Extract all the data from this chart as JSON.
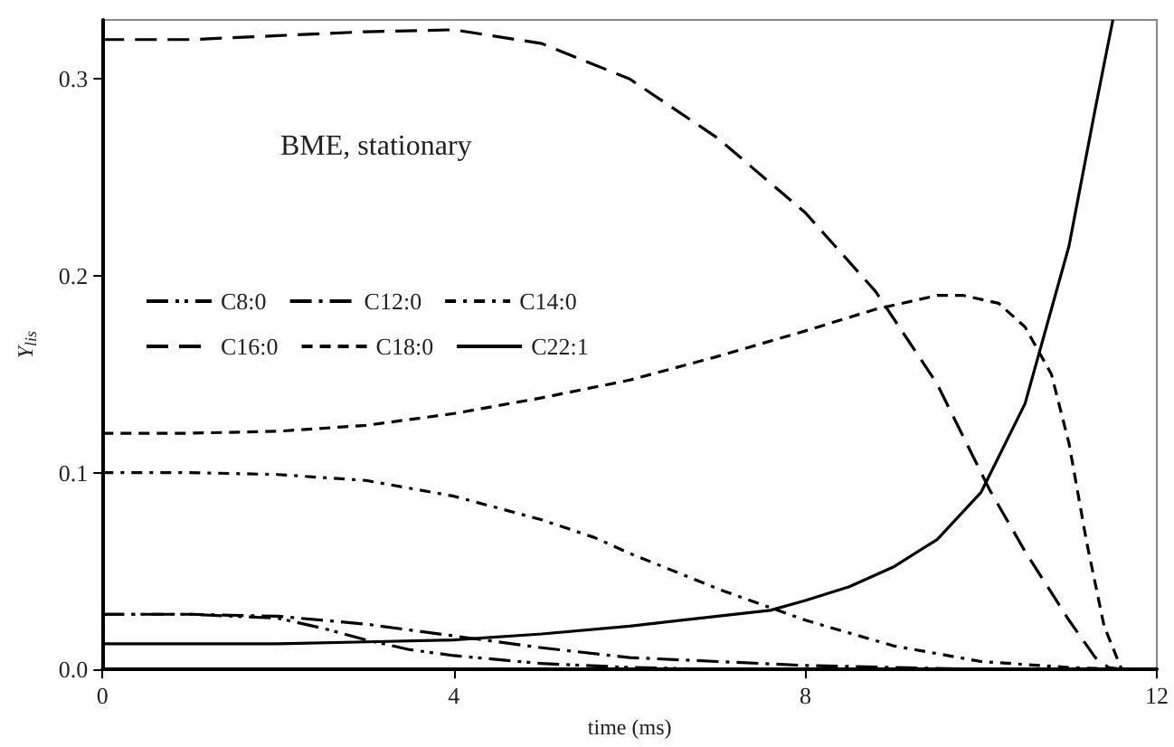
{
  "chart_data": {
    "type": "line",
    "xlabel": "time (ms)",
    "ylabel": "Y$_{lis}$",
    "annotations": [
      "BME, stationary"
    ],
    "xlim": [
      0,
      12
    ],
    "xticks": [
      0,
      4,
      8,
      12
    ],
    "ylim": [
      0,
      0.33
    ],
    "yticks": [
      {
        "value": 0,
        "label": "0.0"
      },
      0.1,
      0.2,
      0.3
    ],
    "grid": false,
    "legend": "left",
    "marker": "none",
    "series": [
      {
        "name": "C8:0",
        "color": "#000000",
        "line_style": "dashdotdot",
        "x": [
          0,
          1,
          2,
          2.5,
          3,
          3.5,
          4,
          5,
          6,
          7
        ],
        "values": [
          0.028,
          0.028,
          0.026,
          0.021,
          0.015,
          0.01,
          0.007,
          0.003,
          0.001,
          0
        ]
      },
      {
        "name": "C12:0",
        "color": "#000000",
        "line_style": "dashdot",
        "x": [
          0,
          1,
          2,
          3,
          4,
          5,
          6,
          7,
          8,
          9,
          10
        ],
        "values": [
          0.028,
          0.028,
          0.027,
          0.023,
          0.017,
          0.011,
          0.006,
          0.004,
          0.002,
          0.001,
          0
        ]
      },
      {
        "name": "C14:0",
        "color": "#000000",
        "line_style": "dashdotshort",
        "x": [
          0,
          1,
          2,
          3,
          4,
          5,
          5.6,
          6,
          7,
          8,
          9,
          10,
          11,
          11.6
        ],
        "values": [
          0.1,
          0.1,
          0.099,
          0.096,
          0.088,
          0.076,
          0.067,
          0.059,
          0.041,
          0.025,
          0.012,
          0.004,
          0.001,
          0
        ]
      },
      {
        "name": "C16:0",
        "color": "#000000",
        "line_style": "longdash",
        "x": [
          0,
          1,
          2,
          3,
          4,
          5,
          6,
          7,
          8,
          8.8,
          9.5,
          10.1,
          10.5,
          11,
          11.3,
          11.45,
          11.6
        ],
        "values": [
          0.32,
          0.32,
          0.322,
          0.324,
          0.325,
          0.318,
          0.3,
          0.27,
          0.232,
          0.192,
          0.145,
          0.091,
          0.06,
          0.025,
          0.006,
          0.001,
          0
        ]
      },
      {
        "name": "C18:0",
        "color": "#000000",
        "line_style": "dashed",
        "x": [
          0,
          1,
          2,
          3,
          4,
          5,
          6,
          7,
          8,
          8.8,
          9.5,
          9.8,
          10.2,
          10.5,
          10.8,
          11,
          11.2,
          11.4,
          11.6
        ],
        "values": [
          0.12,
          0.12,
          0.121,
          0.124,
          0.13,
          0.138,
          0.147,
          0.159,
          0.172,
          0.183,
          0.19,
          0.19,
          0.186,
          0.174,
          0.15,
          0.115,
          0.065,
          0.022,
          0
        ]
      },
      {
        "name": "C22:1",
        "color": "#000000",
        "line_style": "solid",
        "x": [
          0,
          1,
          2,
          3,
          4,
          5,
          6,
          7,
          7.6,
          8,
          8.5,
          9,
          9.5,
          10,
          10.5,
          11,
          11.3,
          11.5
        ],
        "values": [
          0.013,
          0.013,
          0.013,
          0.014,
          0.015,
          0.018,
          0.022,
          0.027,
          0.03,
          0.035,
          0.042,
          0.052,
          0.066,
          0.09,
          0.135,
          0.215,
          0.285,
          0.33
        ]
      }
    ]
  }
}
